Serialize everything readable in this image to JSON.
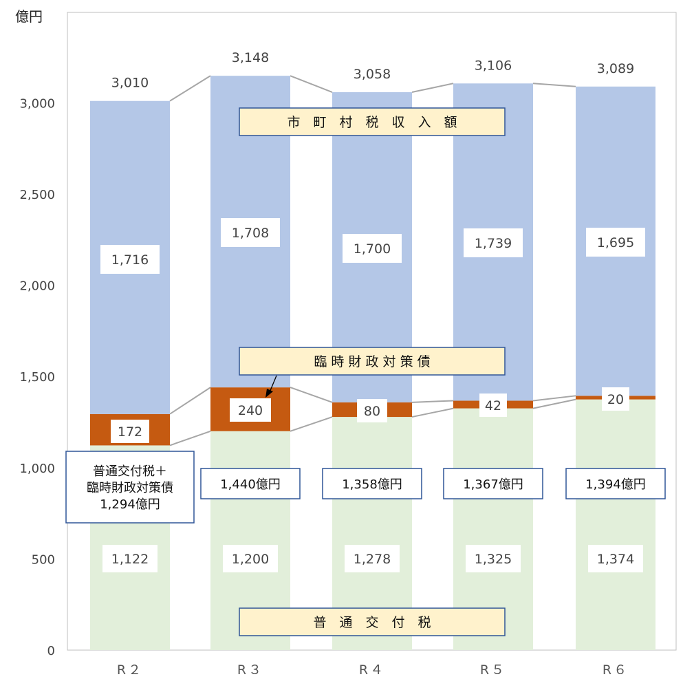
{
  "unit_label": "億円",
  "chart_data": {
    "type": "bar",
    "stacked": true,
    "categories": [
      "R２",
      "R３",
      "R４",
      "R５",
      "R６"
    ],
    "ylim": [
      0,
      3300
    ],
    "yticks": [
      0,
      500,
      1000,
      1500,
      2000,
      2500,
      3000
    ],
    "ytick_labels": [
      "0",
      "500",
      "1,000",
      "1,500",
      "2,000",
      "2,500",
      "3,000"
    ],
    "grid": false,
    "series": [
      {
        "name": "普　通　交　付　税",
        "color": "#e2efda",
        "values": [
          1122,
          1200,
          1278,
          1325,
          1374
        ],
        "labels": [
          "1,122",
          "1,200",
          "1,278",
          "1,325",
          "1,374"
        ]
      },
      {
        "name": "臨 時 財 政 対 策 債",
        "color": "#c55a11",
        "values": [
          172,
          240,
          80,
          42,
          20
        ],
        "labels": [
          "172",
          "240",
          "80",
          "42",
          "20"
        ]
      },
      {
        "name": "市　町　村　税　収　入　額",
        "color": "#b4c7e7",
        "values": [
          1716,
          1708,
          1700,
          1739,
          1695
        ],
        "labels": [
          "1,716",
          "1,708",
          "1,700",
          "1,739",
          "1,695"
        ]
      }
    ],
    "totals": [
      "3,010",
      "3,148",
      "3,058",
      "3,106",
      "3,089"
    ],
    "combined_labels": [
      [
        "普通交付税＋",
        "臨時財政対策債",
        "1,294億円"
      ],
      [
        "1,440億円"
      ],
      [
        "1,358億円"
      ],
      [
        "1,367億円"
      ],
      [
        "1,394億円"
      ]
    ]
  }
}
